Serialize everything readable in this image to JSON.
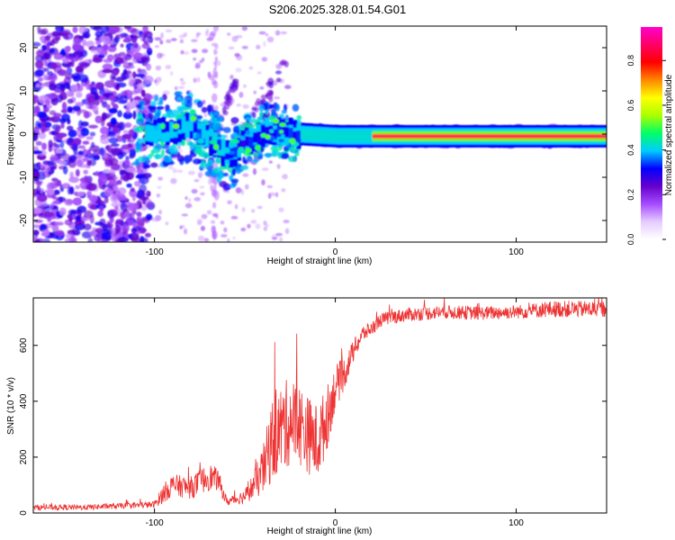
{
  "title": "S206.2025.328.01.54.G01",
  "chart_data": [
    {
      "type": "heatmap",
      "xlabel": "Height of straight line (km)",
      "ylabel": "Frequency (Hz)",
      "xlim": [
        -167,
        150
      ],
      "ylim": [
        -25,
        25
      ],
      "xticks": [
        -100,
        0,
        100
      ],
      "yticks": [
        -20,
        -10,
        0,
        10,
        20
      ],
      "colorbar": {
        "label": "Normalized spectral amplitude",
        "range": [
          0,
          0.95
        ],
        "ticks": [
          0.0,
          0.2,
          0.4,
          0.6,
          0.8
        ],
        "colors": [
          "#ffffff",
          "#e6ccff",
          "#a64dff",
          "#6600cc",
          "#0000ff",
          "#00ccff",
          "#00ff66",
          "#aaff00",
          "#ffff00",
          "#ff8800",
          "#ff0000",
          "#ff0066",
          "#ff00cc"
        ]
      },
      "ridge": [
        {
          "x": -105,
          "y": 0
        },
        {
          "x": -80,
          "y": 2
        },
        {
          "x": -60,
          "y": -5
        },
        {
          "x": -40,
          "y": 1
        },
        {
          "x": -20,
          "y": 0
        },
        {
          "x": 0,
          "y": -0.5
        },
        {
          "x": 50,
          "y": -0.5
        },
        {
          "x": 150,
          "y": -0.5
        }
      ]
    },
    {
      "type": "line",
      "xlabel": "Height of straight line (km)",
      "ylabel": "SNR (10 * v/v)",
      "xlim": [
        -167,
        150
      ],
      "ylim": [
        0,
        770
      ],
      "xticks": [
        -100,
        0,
        100
      ],
      "yticks": [
        0,
        200,
        400,
        600
      ],
      "color": "#ee3333",
      "series": [
        {
          "name": "SNR",
          "x": [
            -167,
            -140,
            -120,
            -100,
            -95,
            -90,
            -80,
            -70,
            -65,
            -60,
            -50,
            -45,
            -40,
            -35,
            -30,
            -25,
            -20,
            -15,
            -10,
            -5,
            0,
            5,
            10,
            15,
            20,
            25,
            30,
            40,
            60,
            80,
            100,
            120,
            150
          ],
          "y": [
            20,
            20,
            25,
            30,
            70,
            100,
            90,
            130,
            120,
            40,
            60,
            100,
            150,
            260,
            300,
            330,
            320,
            280,
            250,
            330,
            450,
            500,
            580,
            640,
            660,
            690,
            700,
            710,
            720,
            715,
            720,
            730,
            730
          ],
          "noise": [
            10,
            10,
            10,
            12,
            35,
            40,
            40,
            50,
            40,
            15,
            25,
            50,
            90,
            150,
            160,
            160,
            150,
            140,
            140,
            120,
            80,
            60,
            40,
            30,
            25,
            25,
            25,
            25,
            25,
            25,
            25,
            30,
            30
          ]
        }
      ]
    }
  ]
}
